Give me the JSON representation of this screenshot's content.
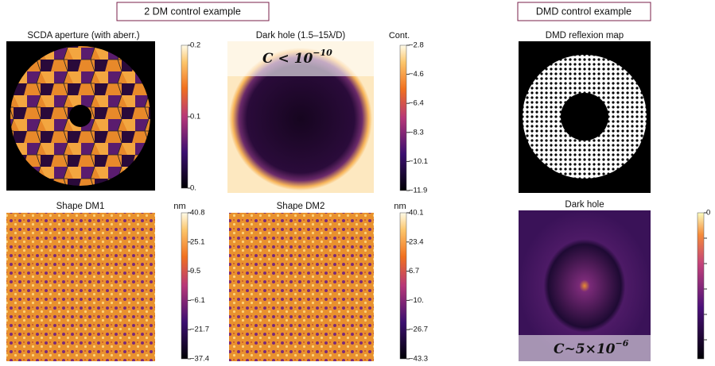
{
  "left_header": "2 DM control example",
  "right_header": "DMD control example",
  "panels": [
    {
      "title": "SCDA aperture (with aberr.)",
      "colorbar": {
        "ticks": [
          "0.2",
          "0.1",
          "0."
        ]
      }
    },
    {
      "title": "Dark hole (1.5–15λ/D)",
      "colorbar": {
        "label": "Cont.",
        "ticks": [
          "−2.8",
          "−4.6",
          "−6.4",
          "−8.3",
          "−10.1",
          "−11.9"
        ]
      },
      "annotation": {
        "base": "C < 10",
        "exponent": "−10"
      }
    },
    {
      "title": "Shape DM1",
      "colorbar": {
        "label": "nm",
        "ticks": [
          "40.8",
          "25.1",
          "9.5",
          "−6.1",
          "−21.7",
          "−37.4"
        ]
      }
    },
    {
      "title": "Shape DM2",
      "colorbar": {
        "label": "nm",
        "ticks": [
          "40.1",
          "23.4",
          "6.7",
          "−10.",
          "−26.7",
          "−43.3"
        ]
      }
    },
    {
      "title": "DMD reflexion map"
    },
    {
      "title": "Dark hole",
      "colorbar": {
        "ticks": [
          "0"
        ]
      },
      "annotation": {
        "base": "C~5×10",
        "exponent": "−6"
      }
    }
  ]
}
